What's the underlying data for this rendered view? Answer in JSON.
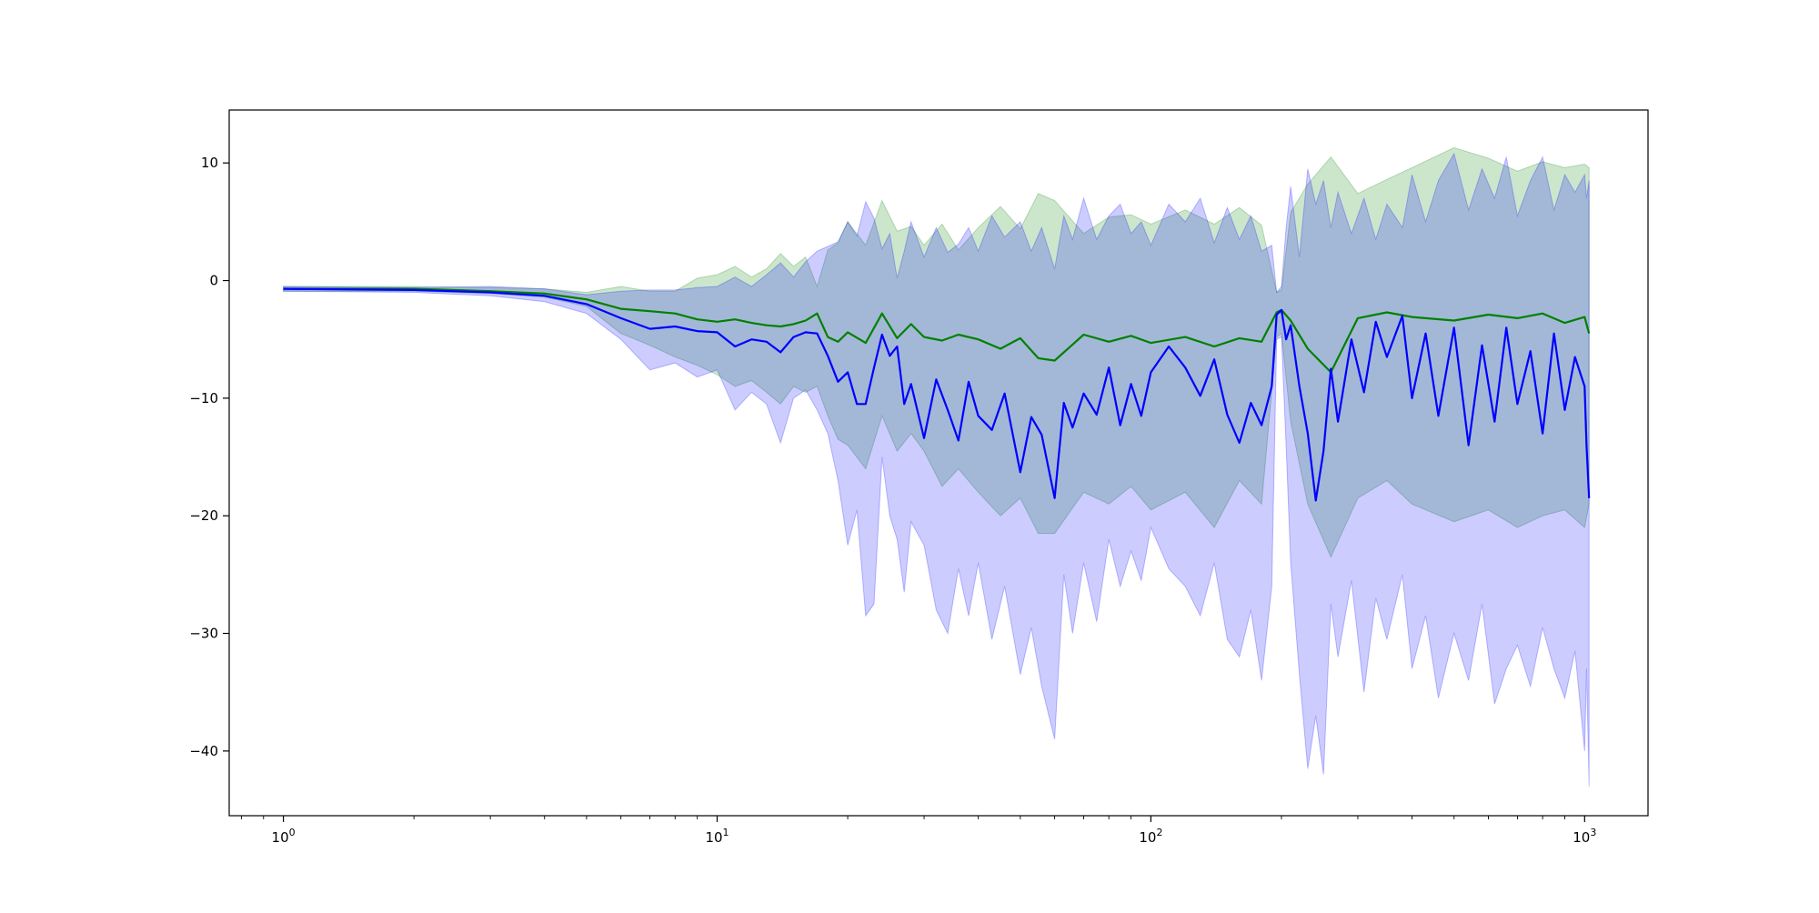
{
  "chart_data": {
    "type": "line",
    "title": "",
    "xlabel": "",
    "ylabel": "",
    "x_scale": "log",
    "xlim": [
      0.75,
      1400
    ],
    "ylim": [
      -45.5,
      14.5
    ],
    "grid": false,
    "legend": "none",
    "x_ticks": [
      {
        "value": 1,
        "base": "10",
        "exp": "0"
      },
      {
        "value": 10,
        "base": "10",
        "exp": "1"
      },
      {
        "value": 100,
        "base": "10",
        "exp": "2"
      },
      {
        "value": 1000,
        "base": "10",
        "exp": "3"
      }
    ],
    "y_ticks": [
      {
        "value": 10,
        "label": "10"
      },
      {
        "value": 0,
        "label": "0"
      },
      {
        "value": -10,
        "label": "−10"
      },
      {
        "value": -20,
        "label": "−20"
      },
      {
        "value": -30,
        "label": "−30"
      },
      {
        "value": -40,
        "label": "−40"
      }
    ],
    "series": [
      {
        "color": "#008000",
        "band_color": "#008000",
        "band_opacity": 0.2,
        "x": [
          1,
          2,
          3,
          4,
          5,
          6,
          7,
          8,
          9,
          10,
          11,
          12,
          13,
          14,
          15,
          16,
          17,
          18,
          19,
          20,
          22,
          24,
          26,
          28,
          30,
          33,
          36,
          40,
          45,
          50,
          55,
          60,
          70,
          80,
          90,
          100,
          120,
          140,
          160,
          180,
          195,
          200,
          210,
          230,
          260,
          300,
          350,
          400,
          500,
          600,
          700,
          800,
          900,
          1000,
          1024
        ],
        "y": [
          -0.7,
          -0.7,
          -0.9,
          -1.1,
          -1.6,
          -2.4,
          -2.6,
          -2.8,
          -3.3,
          -3.5,
          -3.3,
          -3.6,
          -3.8,
          -3.9,
          -3.7,
          -3.4,
          -2.8,
          -4.8,
          -5.2,
          -4.4,
          -5.3,
          -2.8,
          -4.9,
          -3.7,
          -4.8,
          -5.1,
          -4.6,
          -5.0,
          -5.8,
          -4.9,
          -6.6,
          -6.8,
          -4.6,
          -5.2,
          -4.7,
          -5.3,
          -4.8,
          -5.6,
          -4.9,
          -5.2,
          -2.7,
          -2.5,
          -3.4,
          -5.8,
          -7.8,
          -3.2,
          -2.7,
          -3.1,
          -3.4,
          -2.9,
          -3.2,
          -2.8,
          -3.6,
          -3.1,
          -4.5
        ],
        "upper": [
          -0.5,
          -0.5,
          -0.6,
          -0.7,
          -1.0,
          -0.5,
          -0.9,
          -0.9,
          0.2,
          0.5,
          1.2,
          0.3,
          1.0,
          2.3,
          1.2,
          2.0,
          -0.5,
          2.6,
          3.2,
          5.0,
          3.0,
          6.8,
          4.2,
          4.6,
          3.0,
          4.8,
          2.6,
          4.5,
          6.3,
          4.4,
          7.4,
          6.8,
          4.0,
          5.4,
          5.6,
          4.8,
          6.0,
          4.8,
          6.2,
          4.7,
          -1.0,
          -0.8,
          5.8,
          8.2,
          10.5,
          7.4,
          8.6,
          9.6,
          11.3,
          10.4,
          9.3,
          10.1,
          9.6,
          9.9,
          9.6
        ],
        "lower": [
          -0.9,
          -0.9,
          -1.1,
          -1.4,
          -2.2,
          -4.5,
          -5.5,
          -6.5,
          -7.2,
          -8.0,
          -9.0,
          -8.5,
          -9.5,
          -10.5,
          -9.0,
          -9.5,
          -9.0,
          -11.5,
          -13.5,
          -14.0,
          -16.0,
          -11.5,
          -14.5,
          -13.0,
          -14.5,
          -17.5,
          -16.0,
          -18.0,
          -20.0,
          -18.5,
          -21.5,
          -21.5,
          -18.0,
          -19.0,
          -17.5,
          -19.5,
          -18.0,
          -21.0,
          -17.0,
          -19.0,
          -4.8,
          -4.5,
          -12.0,
          -19.0,
          -23.5,
          -18.5,
          -17.0,
          -19.0,
          -20.5,
          -19.5,
          -21.0,
          -20.0,
          -19.5,
          -21.0,
          -19.0
        ]
      },
      {
        "color": "#0000ff",
        "band_color": "#0000ff",
        "band_opacity": 0.2,
        "x": [
          1,
          2,
          3,
          4,
          5,
          6,
          7,
          8,
          9,
          10,
          11,
          12,
          13,
          14,
          15,
          16,
          17,
          18,
          19,
          20,
          21,
          22,
          23,
          24,
          25,
          26,
          27,
          28,
          30,
          32,
          34,
          36,
          38,
          40,
          43,
          46,
          50,
          53,
          56,
          60,
          63,
          66,
          70,
          75,
          80,
          85,
          90,
          95,
          100,
          110,
          120,
          130,
          140,
          150,
          160,
          170,
          180,
          190,
          195,
          200,
          205,
          210,
          220,
          230,
          240,
          250,
          260,
          270,
          290,
          310,
          330,
          350,
          380,
          400,
          430,
          460,
          500,
          540,
          580,
          620,
          660,
          700,
          750,
          800,
          850,
          900,
          950,
          1000,
          1010,
          1024
        ],
        "y": [
          -0.7,
          -0.8,
          -1.0,
          -1.3,
          -2.0,
          -3.2,
          -4.1,
          -3.9,
          -4.3,
          -4.4,
          -5.6,
          -5.0,
          -5.2,
          -6.1,
          -4.8,
          -4.4,
          -4.5,
          -6.4,
          -8.6,
          -7.8,
          -10.5,
          -10.5,
          -7.4,
          -4.6,
          -6.4,
          -5.6,
          -10.5,
          -8.8,
          -13.4,
          -8.4,
          -11.0,
          -13.6,
          -8.6,
          -11.5,
          -12.7,
          -9.6,
          -16.3,
          -11.6,
          -13.1,
          -18.5,
          -10.4,
          -12.5,
          -9.6,
          -11.4,
          -7.4,
          -12.3,
          -8.8,
          -11.5,
          -7.8,
          -5.6,
          -7.4,
          -9.8,
          -6.7,
          -11.4,
          -13.8,
          -10.4,
          -12.3,
          -9.0,
          -2.9,
          -2.5,
          -5.0,
          -3.8,
          -9.0,
          -13.0,
          -18.7,
          -14.5,
          -7.5,
          -12.0,
          -5.0,
          -9.5,
          -3.5,
          -6.5,
          -3.0,
          -10.0,
          -4.5,
          -11.5,
          -4.0,
          -14.0,
          -5.5,
          -12.0,
          -4.0,
          -10.5,
          -6.0,
          -13.0,
          -4.5,
          -11.0,
          -6.5,
          -9.0,
          -14.0,
          -18.5
        ],
        "upper": [
          -0.5,
          -0.6,
          -0.5,
          -0.7,
          -1.2,
          -0.9,
          -0.8,
          -0.8,
          -0.6,
          -0.5,
          0.3,
          -0.5,
          0.5,
          1.5,
          0.3,
          1.6,
          2.5,
          2.9,
          3.3,
          5.0,
          3.8,
          6.7,
          5.3,
          2.7,
          4.0,
          0.2,
          2.5,
          5.0,
          2.0,
          4.5,
          2.4,
          3.1,
          4.5,
          2.5,
          5.5,
          3.7,
          5.0,
          2.5,
          4.5,
          1.0,
          5.5,
          3.5,
          7.0,
          3.5,
          5.5,
          6.5,
          4.0,
          5.0,
          3.0,
          6.5,
          5.0,
          7.0,
          3.2,
          6.2,
          3.5,
          5.5,
          2.5,
          3.0,
          -1.0,
          -0.5,
          4.5,
          8.0,
          2.0,
          9.5,
          6.5,
          8.5,
          4.5,
          7.5,
          4.0,
          7.0,
          3.5,
          6.5,
          4.5,
          9.0,
          5.0,
          8.5,
          10.8,
          6.0,
          9.5,
          7.0,
          10.5,
          5.5,
          8.5,
          10.5,
          6.0,
          9.0,
          7.5,
          9.0,
          7.0,
          8.5
        ],
        "lower": [
          -0.9,
          -1.0,
          -1.3,
          -1.8,
          -2.8,
          -5.0,
          -7.6,
          -7.0,
          -8.2,
          -7.6,
          -11.0,
          -9.5,
          -10.5,
          -13.8,
          -10.0,
          -9.3,
          -11.0,
          -13.0,
          -17.0,
          -22.5,
          -19.5,
          -28.5,
          -27.5,
          -15.0,
          -20.0,
          -22.0,
          -26.5,
          -20.5,
          -22.5,
          -28.0,
          -30.0,
          -24.5,
          -28.5,
          -24.0,
          -30.5,
          -26.0,
          -33.5,
          -29.5,
          -34.5,
          -39.0,
          -25.0,
          -30.0,
          -24.0,
          -29.0,
          -22.0,
          -26.0,
          -23.0,
          -25.5,
          -21.0,
          -24.5,
          -26.0,
          -28.5,
          -24.0,
          -30.5,
          -32.0,
          -28.0,
          -34.0,
          -26.0,
          -5.0,
          -4.8,
          -14.0,
          -24.0,
          -33.5,
          -41.5,
          -37.0,
          -42.0,
          -27.5,
          -32.0,
          -25.5,
          -35.0,
          -27.0,
          -30.5,
          -25.0,
          -33.0,
          -28.5,
          -35.5,
          -30.0,
          -34.0,
          -27.5,
          -36.0,
          -33.0,
          -31.0,
          -34.5,
          -29.5,
          -33.0,
          -35.5,
          -31.5,
          -40.0,
          -33.0,
          -43.0
        ]
      }
    ]
  }
}
